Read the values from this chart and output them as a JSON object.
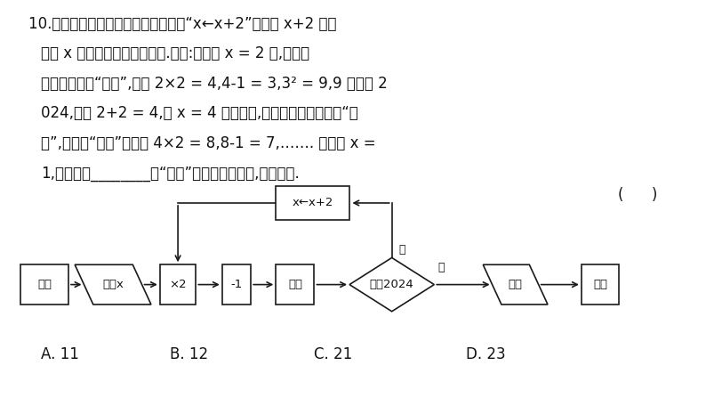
{
  "bg_color": "#ffffff",
  "options": [
    "A. 11",
    "B. 12",
    "C. 21",
    "D. 23"
  ],
  "font_size_main": 12,
  "font_size_flow": 9.5,
  "node_labels": {
    "start": "开始",
    "input": "输入x",
    "x2": "×2",
    "minus1": "-1",
    "square": "平方",
    "diamond": "大于2024",
    "output": "输出",
    "end": "结束",
    "feedback": "x←x+2"
  },
  "yes_label": "是",
  "no_label": "否"
}
